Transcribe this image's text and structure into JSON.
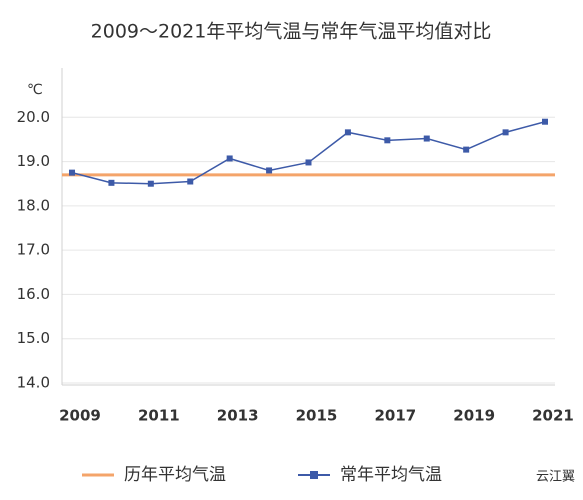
{
  "chart_data": {
    "type": "line",
    "title": "2009～2021年平均气温与常年气温平均值对比",
    "y_unit": "℃",
    "watermark": "云江翼",
    "categories": [
      "2009",
      null,
      "2011",
      null,
      "2013",
      null,
      "2015",
      null,
      "2017",
      null,
      "2019",
      null,
      "2021"
    ],
    "series": [
      {
        "name": "历年平均气温",
        "color": "#f4a46a",
        "value": 18.7
      },
      {
        "name": "常年平均气温",
        "color": "#3d5aa8",
        "values": [
          18.75,
          18.52,
          18.5,
          18.55,
          19.07,
          18.8,
          18.98,
          19.66,
          19.48,
          19.52,
          19.27,
          19.66,
          19.9
        ]
      }
    ],
    "ylim": [
      14,
      21
    ],
    "yticks": [
      {
        "value": 14,
        "label": "14.0"
      },
      {
        "value": 15,
        "label": "15.0"
      },
      {
        "value": 16,
        "label": "16.0"
      },
      {
        "value": 17,
        "label": "17.0"
      },
      {
        "value": 18,
        "label": "18.0"
      },
      {
        "value": 19,
        "label": "19.0"
      },
      {
        "value": 20,
        "label": "20.0"
      }
    ],
    "grid": true,
    "legend": "bottom"
  }
}
